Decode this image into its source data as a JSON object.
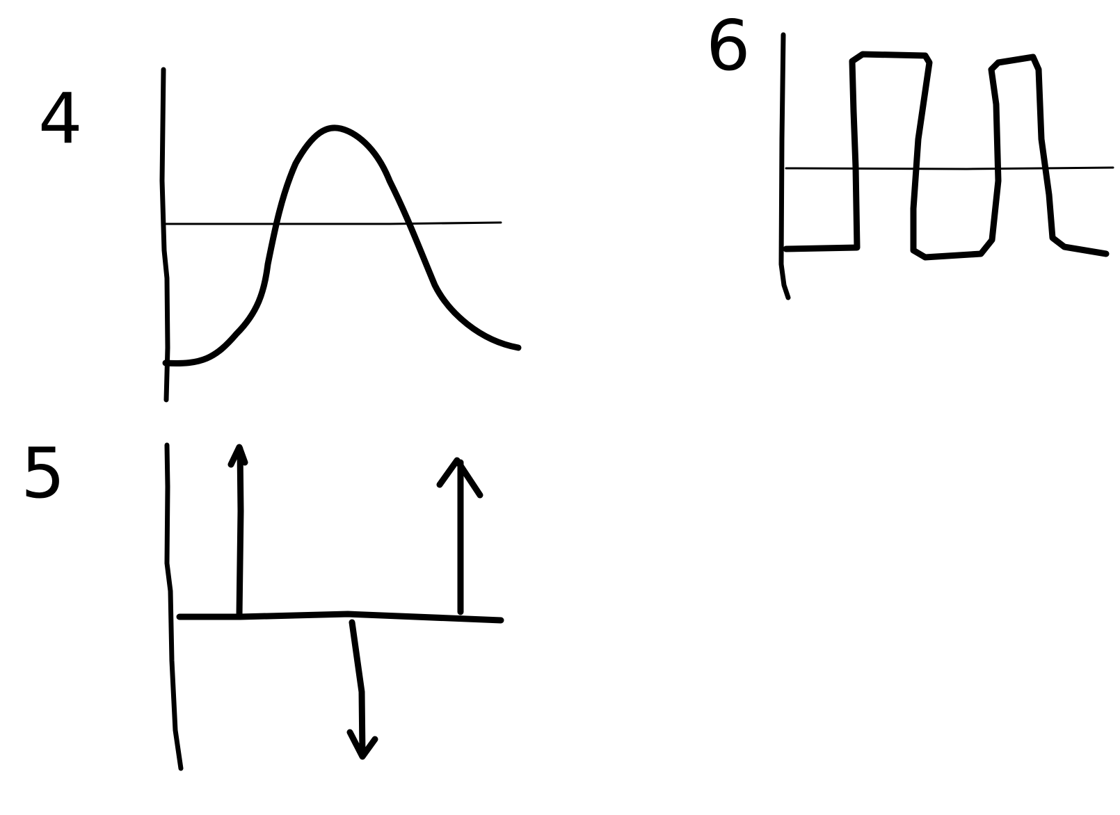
{
  "sketches": [
    {
      "id": "4",
      "label": "4",
      "kind": "waveform",
      "description_shape": "sinusoid-like single hump"
    },
    {
      "id": "5",
      "label": "5",
      "kind": "impulse-train",
      "impulses": [
        "up",
        "down",
        "up"
      ]
    },
    {
      "id": "6",
      "label": "6",
      "kind": "waveform",
      "description_shape": "square wave"
    }
  ],
  "colors": {
    "ink": "#000000",
    "paper": "#ffffff"
  }
}
